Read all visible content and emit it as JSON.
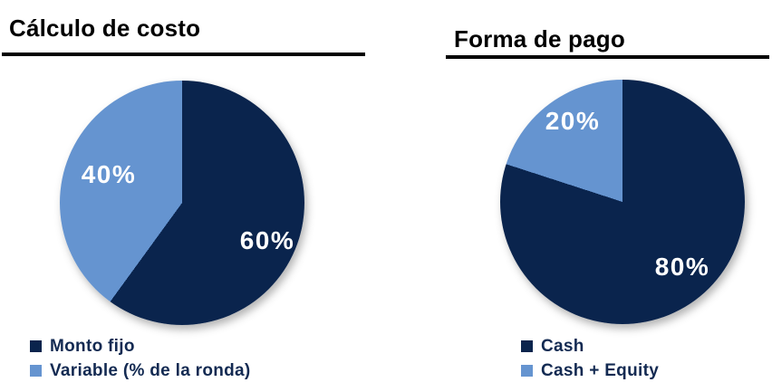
{
  "page": {
    "background": "#ffffff"
  },
  "colors": {
    "slice_dark_navy": "#0A244D",
    "slice_light_blue": "#6594D0",
    "title_text": "#000000",
    "legend_text": "#132A52",
    "slice_label_text": "#ffffff",
    "title_rule": "#000000"
  },
  "chart_data": [
    {
      "type": "pie",
      "title": "Cálculo de costo",
      "categories": [
        "Monto fijo",
        "Variable (% de la ronda)"
      ],
      "values": [
        60,
        40
      ],
      "labels": [
        "60%",
        "40%"
      ],
      "slice_colors": [
        "#0A244D",
        "#6594D0"
      ],
      "start_angle_deg": 0,
      "direction": "clockwise",
      "legend_position": "bottom-left",
      "data_labels": "inside-percent"
    },
    {
      "type": "pie",
      "title": "Forma de pago",
      "categories": [
        "Cash",
        "Cash + Equity"
      ],
      "values": [
        80,
        20
      ],
      "labels": [
        "80%",
        "20%"
      ],
      "slice_colors": [
        "#0A244D",
        "#6594D0"
      ],
      "start_angle_deg": 0,
      "direction": "clockwise",
      "legend_position": "bottom-left",
      "data_labels": "inside-percent"
    }
  ]
}
